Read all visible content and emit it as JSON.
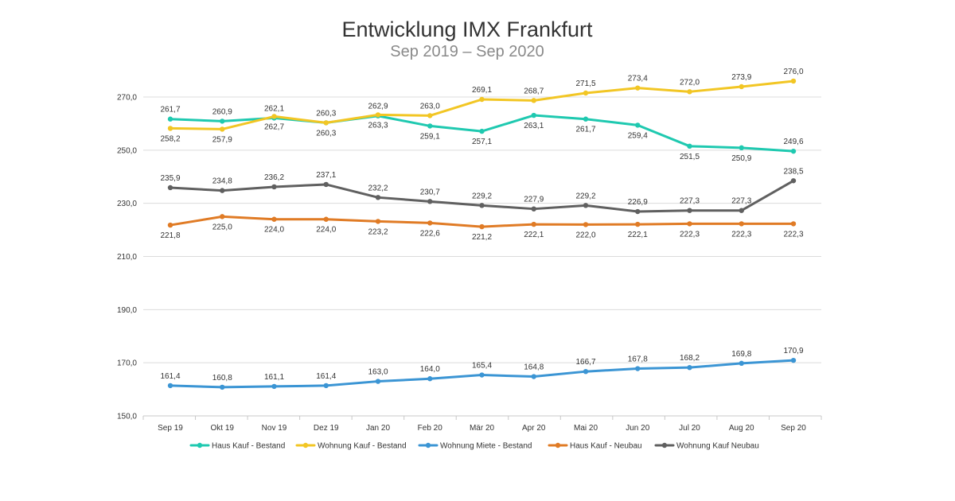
{
  "chart_data": {
    "type": "line",
    "title": "Entwicklung IMX Frankfurt",
    "subtitle": "Sep 2019 – Sep 2020",
    "categories": [
      "Sep 19",
      "Okt 19",
      "Nov 19",
      "Dez 19",
      "Jan 20",
      "Feb 20",
      "Mär 20",
      "Apr 20",
      "Mai 20",
      "Jun 20",
      "Jul 20",
      "Aug 20",
      "Sep 20"
    ],
    "ylim": [
      150,
      270
    ],
    "yticks": [
      "150,0",
      "170,0",
      "190,0",
      "210,0",
      "230,0",
      "250,0",
      "270,0"
    ],
    "ytick_values": [
      150,
      170,
      190,
      210,
      230,
      250,
      270
    ],
    "grid": true,
    "legend_position": "bottom",
    "series": [
      {
        "name": "Haus Kauf - Bestand",
        "color": "#1fc9b0",
        "values": [
          261.7,
          260.9,
          262.1,
          260.3,
          262.9,
          259.1,
          257.1,
          263.1,
          261.7,
          259.4,
          251.5,
          250.9,
          249.6
        ],
        "labels": [
          "261,7",
          "260,9",
          "262,1",
          "260,3",
          "262,9",
          "259,1",
          "257,1",
          "263,1",
          "261,7",
          "259,4",
          "251,5",
          "250,9",
          "249,6"
        ],
        "label_pos": [
          "above",
          "above",
          "above",
          "above",
          "above",
          "below",
          "below",
          "below",
          "below",
          "below",
          "below",
          "below",
          "above"
        ]
      },
      {
        "name": "Wohnung Kauf - Bestand",
        "color": "#f2c624",
        "values": [
          258.2,
          257.9,
          262.7,
          260.3,
          263.3,
          263.0,
          269.1,
          268.7,
          271.5,
          273.4,
          272.0,
          273.9,
          276.0
        ],
        "labels": [
          "258,2",
          "257,9",
          "262,7",
          "260,3",
          "263,3",
          "263,0",
          "269,1",
          "268,7",
          "271,5",
          "273,4",
          "272,0",
          "273,9",
          "276,0"
        ],
        "label_pos": [
          "below",
          "below",
          "below",
          "below",
          "below",
          "above",
          "above",
          "above",
          "above",
          "above",
          "above",
          "above",
          "above"
        ]
      },
      {
        "name": "Wohnung Miete - Bestand",
        "color": "#3b95d4",
        "values": [
          161.4,
          160.8,
          161.1,
          161.4,
          163.0,
          164.0,
          165.4,
          164.8,
          166.7,
          167.8,
          168.2,
          169.8,
          170.9
        ],
        "labels": [
          "161,4",
          "160,8",
          "161,1",
          "161,4",
          "163,0",
          "164,0",
          "165,4",
          "164,8",
          "166,7",
          "167,8",
          "168,2",
          "169,8",
          "170,9"
        ],
        "label_pos": [
          "above",
          "above",
          "above",
          "above",
          "above",
          "above",
          "above",
          "above",
          "above",
          "above",
          "above",
          "above",
          "above"
        ]
      },
      {
        "name": "Haus Kauf - Neubau",
        "color": "#e07b25",
        "values": [
          221.8,
          225.0,
          224.0,
          224.0,
          223.2,
          222.6,
          221.2,
          222.1,
          222.0,
          222.1,
          222.3,
          222.3,
          222.3
        ],
        "labels": [
          "221,8",
          "225,0",
          "224,0",
          "224,0",
          "223,2",
          "222,6",
          "221,2",
          "222,1",
          "222,0",
          "222,1",
          "222,3",
          "222,3",
          "222,3"
        ],
        "label_pos": [
          "below",
          "below",
          "below",
          "below",
          "below",
          "below",
          "below",
          "below",
          "below",
          "below",
          "below",
          "below",
          "below"
        ]
      },
      {
        "name": "Wohnung Kauf Neubau",
        "color": "#606060",
        "values": [
          235.9,
          234.8,
          236.2,
          237.1,
          232.2,
          230.7,
          229.2,
          227.9,
          229.2,
          226.9,
          227.3,
          227.3,
          238.5
        ],
        "labels": [
          "235,9",
          "234,8",
          "236,2",
          "237,1",
          "232,2",
          "230,7",
          "229,2",
          "227,9",
          "229,2",
          "226,9",
          "227,3",
          "227,3",
          "238,5"
        ],
        "label_pos": [
          "above",
          "above",
          "above",
          "above",
          "above",
          "above",
          "above",
          "above",
          "above",
          "above",
          "above",
          "above",
          "above"
        ]
      }
    ]
  }
}
